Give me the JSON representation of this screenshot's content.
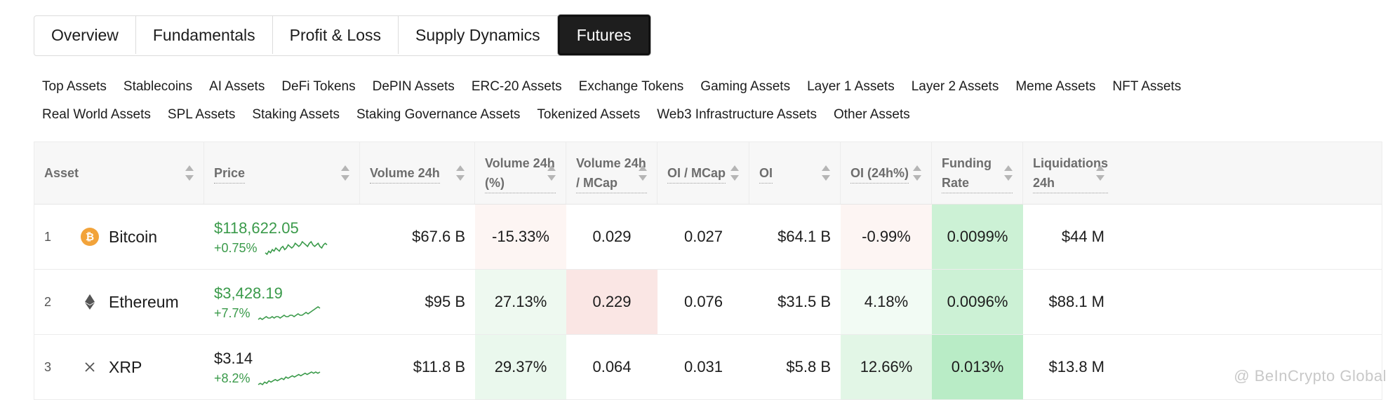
{
  "tabs": [
    {
      "label": "Overview",
      "active": false
    },
    {
      "label": "Fundamentals",
      "active": false
    },
    {
      "label": "Profit & Loss",
      "active": false
    },
    {
      "label": "Supply Dynamics",
      "active": false
    },
    {
      "label": "Futures",
      "active": true
    }
  ],
  "categories_row1": [
    "Top Assets",
    "Stablecoins",
    "AI Assets",
    "DeFi Tokens",
    "DePIN Assets",
    "ERC-20 Assets",
    "Exchange Tokens",
    "Gaming Assets",
    "Layer 1 Assets",
    "Layer 2 Assets",
    "Meme Assets",
    "NFT Assets"
  ],
  "categories_row2": [
    "Real World Assets",
    "SPL Assets",
    "Staking Assets",
    "Staking Governance Assets",
    "Tokenized Assets",
    "Web3 Infrastructure Assets",
    "Other Assets"
  ],
  "table": {
    "headers": [
      "Asset",
      "Price",
      "Volume 24h",
      "Volume 24h (%)",
      "Volume 24h / MCap",
      "OI / MCap",
      "OI",
      "OI (24h%)",
      "Funding Rate",
      "Liquidations 24h"
    ],
    "rows": [
      {
        "rank": "1",
        "name": "Bitcoin",
        "icon": "bitcoin-icon",
        "icon_color": "#f2a33a",
        "price": "$118,622.05",
        "price_green": true,
        "change": "+0.75%",
        "spark": [
          5,
          4,
          6,
          5,
          7,
          6,
          8,
          7,
          6,
          8,
          9,
          7,
          8,
          10,
          9,
          8,
          9,
          11,
          10,
          9,
          10,
          12,
          11,
          10,
          9,
          11,
          12,
          10,
          9,
          10,
          11,
          9,
          8,
          10,
          11,
          10
        ],
        "volume": "$67.6 B",
        "volume_pct": "-15.33%",
        "vol_mcap": "0.029",
        "oi_mcap": "0.027",
        "oi": "$64.1 B",
        "oi_24h": "-0.99%",
        "funding": "0.0099%",
        "liquidations": "$44 M",
        "bg": {
          "volume_pct": "#fdf5f3",
          "vol_mcap": "#ffffff",
          "oi_24h": "#fdf5f3",
          "funding": "#ccf1d5"
        }
      },
      {
        "rank": "2",
        "name": "Ethereum",
        "icon": "ethereum-icon",
        "icon_color": "#555555",
        "price": "$3,428.19",
        "price_green": true,
        "change": "+7.7%",
        "spark": [
          3,
          4,
          3,
          4,
          5,
          4,
          4,
          5,
          4,
          5,
          5,
          4,
          5,
          6,
          5,
          5,
          6,
          6,
          5,
          6,
          7,
          6,
          6,
          7,
          8,
          7,
          8,
          9,
          10,
          11,
          12,
          11
        ],
        "volume": "$95 B",
        "volume_pct": "27.13%",
        "vol_mcap": "0.229",
        "oi_mcap": "0.076",
        "oi": "$31.5 B",
        "oi_24h": "4.18%",
        "funding": "0.0096%",
        "liquidations": "$88.1 M",
        "bg": {
          "volume_pct": "#eef9f0",
          "vol_mcap": "#fae6e4",
          "oi_24h": "#f2fbf4",
          "funding": "#ccf1d5"
        }
      },
      {
        "rank": "3",
        "name": "XRP",
        "icon": "xrp-icon",
        "icon_color": "#555555",
        "price": "$3.14",
        "price_green": false,
        "change": "+8.2%",
        "spark": [
          2,
          3,
          2,
          4,
          3,
          5,
          4,
          5,
          6,
          5,
          6,
          7,
          6,
          8,
          7,
          8,
          9,
          8,
          9,
          10,
          9,
          10,
          11,
          10,
          11,
          12,
          11,
          12,
          11,
          12
        ],
        "volume": "$11.8 B",
        "volume_pct": "29.37%",
        "vol_mcap": "0.064",
        "oi_mcap": "0.031",
        "oi": "$5.8 B",
        "oi_24h": "12.66%",
        "funding": "0.013%",
        "liquidations": "$13.8 M",
        "bg": {
          "volume_pct": "#eaf8ed",
          "vol_mcap": "#ffffff",
          "oi_24h": "#e2f6e6",
          "funding": "#b9ecc6"
        }
      }
    ]
  },
  "watermark": "@ BeInCrypto Global"
}
